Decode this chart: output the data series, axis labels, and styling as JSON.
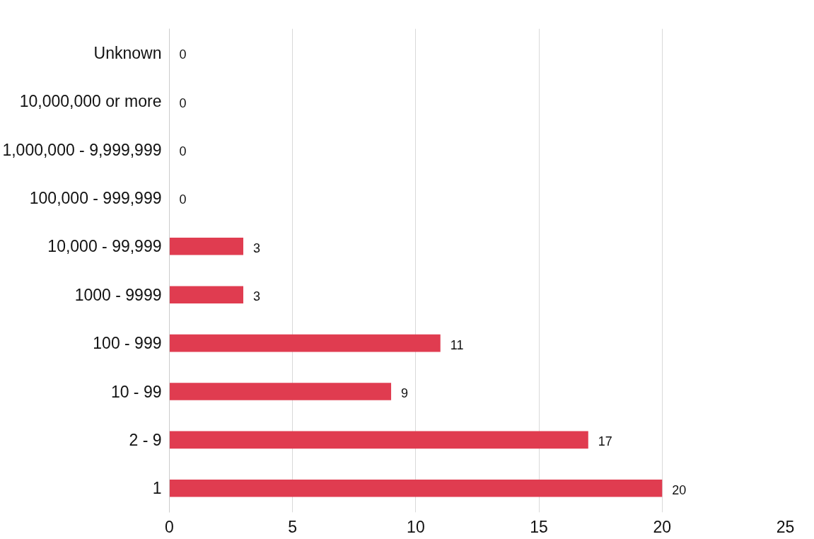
{
  "chart_data": {
    "type": "bar",
    "orientation": "horizontal",
    "categories": [
      "Unknown",
      "10,000,000 or more",
      "1,000,000 - 9,999,999",
      "100,000 - 999,999",
      "10,000 - 99,999",
      "1000 - 9999",
      "100 - 999",
      "10 - 99",
      "2 - 9",
      "1"
    ],
    "values": [
      0,
      0,
      0,
      0,
      3,
      3,
      11,
      9,
      17,
      20
    ],
    "color": "#e03c50",
    "xlim": [
      0,
      25
    ],
    "xticks": [
      0,
      5,
      10,
      15,
      20,
      25
    ],
    "grid": "x",
    "data_labels": true
  }
}
